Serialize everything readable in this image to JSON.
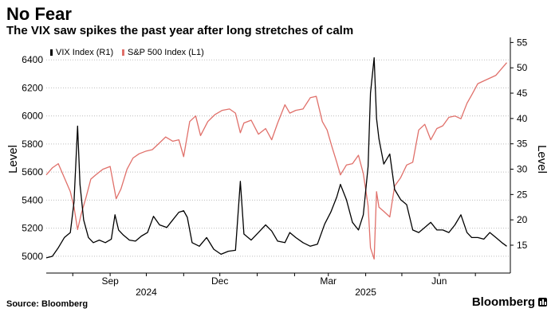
{
  "header": {
    "title": "No Fear",
    "subtitle": "The VIX saw spikes the past year after long stretches of calm"
  },
  "footer": {
    "source": "Source: Bloomberg",
    "brand": "Bloomberg"
  },
  "colors": {
    "vix": "#000000",
    "spx": "#e0706a",
    "grid": "#bdbdbd",
    "background": "#ffffff"
  },
  "chart_data": {
    "type": "line",
    "ylabel_left": "Level",
    "ylabel_right": "Level",
    "ylim_left": [
      4880,
      6560
    ],
    "ylim_right": [
      9.5,
      56
    ],
    "yticks_left": [
      5000,
      5200,
      5400,
      5600,
      5800,
      6000,
      6200,
      6400
    ],
    "yticks_right": [
      15,
      20,
      25,
      30,
      35,
      40,
      45,
      50,
      55
    ],
    "xlim": [
      "2024-07-10",
      "2025-07-30"
    ],
    "month_ticks": [
      "2024-08-01",
      "2024-09-01",
      "2024-10-01",
      "2024-11-01",
      "2024-12-01",
      "2025-01-01",
      "2025-02-01",
      "2025-03-01",
      "2025-04-01",
      "2025-05-01",
      "2025-06-01",
      "2025-07-01"
    ],
    "xticks": [
      {
        "date": "2024-09-01",
        "label": "Sep"
      },
      {
        "date": "2024-12-01",
        "label": "Dec"
      },
      {
        "date": "2025-03-01",
        "label": "Mar"
      },
      {
        "date": "2025-06-01",
        "label": "Jun"
      }
    ],
    "year_labels": [
      {
        "date": "2024-10-01",
        "label": "2024"
      },
      {
        "date": "2025-04-01",
        "label": "2025"
      }
    ],
    "grid": true,
    "legend_position": "top-left",
    "series": [
      {
        "name": "VIX Index (R1)",
        "axis": "right",
        "color": "#000000",
        "x": [
          "2024-07-10",
          "2024-07-15",
          "2024-07-20",
          "2024-07-25",
          "2024-07-30",
          "2024-08-02",
          "2024-08-05",
          "2024-08-07",
          "2024-08-10",
          "2024-08-14",
          "2024-08-18",
          "2024-08-23",
          "2024-08-28",
          "2024-09-02",
          "2024-09-05",
          "2024-09-08",
          "2024-09-12",
          "2024-09-17",
          "2024-09-22",
          "2024-09-27",
          "2024-10-02",
          "2024-10-07",
          "2024-10-12",
          "2024-10-18",
          "2024-10-23",
          "2024-10-28",
          "2024-11-01",
          "2024-11-04",
          "2024-11-08",
          "2024-11-14",
          "2024-11-20",
          "2024-11-26",
          "2024-12-02",
          "2024-12-08",
          "2024-12-14",
          "2024-12-18",
          "2024-12-21",
          "2024-12-27",
          "2025-01-02",
          "2025-01-08",
          "2025-01-13",
          "2025-01-18",
          "2025-01-24",
          "2025-01-28",
          "2025-02-02",
          "2025-02-08",
          "2025-02-14",
          "2025-02-20",
          "2025-02-26",
          "2025-03-03",
          "2025-03-08",
          "2025-03-11",
          "2025-03-16",
          "2025-03-21",
          "2025-03-26",
          "2025-03-30",
          "2025-04-03",
          "2025-04-05",
          "2025-04-08",
          "2025-04-10",
          "2025-04-12",
          "2025-04-16",
          "2025-04-21",
          "2025-04-25",
          "2025-04-30",
          "2025-05-05",
          "2025-05-10",
          "2025-05-15",
          "2025-05-20",
          "2025-05-25",
          "2025-05-30",
          "2025-06-04",
          "2025-06-09",
          "2025-06-14",
          "2025-06-19",
          "2025-06-24",
          "2025-06-28",
          "2025-07-03",
          "2025-07-08",
          "2025-07-13",
          "2025-07-18",
          "2025-07-23",
          "2025-07-27"
        ],
        "values": [
          12.5,
          12.8,
          14.5,
          16.5,
          17.5,
          23.5,
          38.5,
          27,
          20,
          16.5,
          15.5,
          16,
          15.5,
          16.2,
          21,
          18,
          17,
          16,
          15.8,
          16.8,
          17.5,
          20.7,
          19,
          18.5,
          20,
          21.5,
          21.8,
          20.5,
          15.5,
          14.8,
          16.5,
          14.2,
          13.2,
          13.8,
          14,
          27.6,
          17.2,
          16,
          17.5,
          19,
          17.8,
          15.8,
          15.5,
          17.5,
          16.5,
          15.5,
          14.8,
          15.2,
          19.2,
          21.5,
          24.5,
          27,
          24,
          19.5,
          18,
          21,
          30.5,
          45,
          52,
          40,
          36,
          31,
          33,
          26,
          24,
          23,
          18,
          17.5,
          18.5,
          19.5,
          18,
          18,
          17.5,
          19,
          21,
          17.5,
          16.5,
          16.5,
          16.2,
          17.5,
          16.5,
          15.5,
          14.8
        ]
      },
      {
        "name": "S&P 500 Index (L1)",
        "axis": "left",
        "color": "#e0706a",
        "x": [
          "2024-07-10",
          "2024-07-15",
          "2024-07-20",
          "2024-07-25",
          "2024-07-30",
          "2024-08-02",
          "2024-08-05",
          "2024-08-08",
          "2024-08-12",
          "2024-08-16",
          "2024-08-20",
          "2024-08-26",
          "2024-09-01",
          "2024-09-06",
          "2024-09-10",
          "2024-09-15",
          "2024-09-20",
          "2024-09-25",
          "2024-10-01",
          "2024-10-06",
          "2024-10-11",
          "2024-10-17",
          "2024-10-23",
          "2024-10-28",
          "2024-11-01",
          "2024-11-06",
          "2024-11-11",
          "2024-11-15",
          "2024-11-21",
          "2024-11-27",
          "2024-12-03",
          "2024-12-09",
          "2024-12-14",
          "2024-12-18",
          "2024-12-21",
          "2024-12-27",
          "2025-01-02",
          "2025-01-08",
          "2025-01-13",
          "2025-01-18",
          "2025-01-24",
          "2025-01-28",
          "2025-02-02",
          "2025-02-08",
          "2025-02-14",
          "2025-02-19",
          "2025-02-24",
          "2025-02-28",
          "2025-03-04",
          "2025-03-08",
          "2025-03-11",
          "2025-03-16",
          "2025-03-21",
          "2025-03-26",
          "2025-03-30",
          "2025-04-03",
          "2025-04-05",
          "2025-04-08",
          "2025-04-10",
          "2025-04-12",
          "2025-04-16",
          "2025-04-21",
          "2025-04-25",
          "2025-04-30",
          "2025-05-05",
          "2025-05-10",
          "2025-05-15",
          "2025-05-20",
          "2025-05-25",
          "2025-05-30",
          "2025-06-04",
          "2025-06-09",
          "2025-06-14",
          "2025-06-19",
          "2025-06-24",
          "2025-06-28",
          "2025-07-03",
          "2025-07-08",
          "2025-07-13",
          "2025-07-18",
          "2025-07-23",
          "2025-07-27"
        ],
        "values": [
          5580,
          5630,
          5660,
          5560,
          5460,
          5350,
          5190,
          5300,
          5420,
          5550,
          5580,
          5620,
          5640,
          5410,
          5480,
          5620,
          5700,
          5730,
          5750,
          5760,
          5800,
          5850,
          5820,
          5830,
          5710,
          5960,
          6000,
          5860,
          5960,
          6010,
          6040,
          6050,
          6020,
          5880,
          5950,
          5970,
          5870,
          5910,
          5830,
          5950,
          6080,
          6020,
          6040,
          6050,
          6130,
          6140,
          5960,
          5900,
          5780,
          5670,
          5580,
          5650,
          5660,
          5720,
          5590,
          5360,
          5060,
          4980,
          5460,
          5350,
          5320,
          5280,
          5500,
          5560,
          5650,
          5670,
          5900,
          5940,
          5830,
          5910,
          5930,
          5990,
          6000,
          5980,
          6090,
          6150,
          6230,
          6250,
          6270,
          6290,
          6340,
          6380
        ]
      }
    ]
  }
}
